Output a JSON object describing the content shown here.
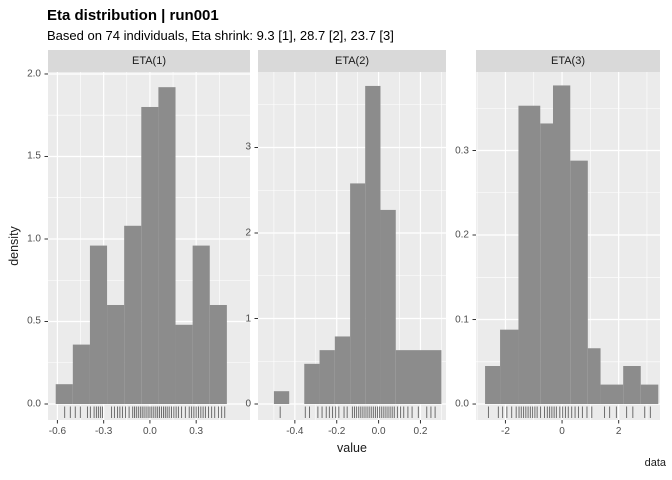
{
  "header": {
    "title": "Eta distribution | run001",
    "subtitle": "Based on 74 individuals, Eta shrink: 9.3 [1], 28.7 [2], 23.7 [3]"
  },
  "colors": {
    "bar": "#8c8c8c",
    "panel_bg": "#ebebeb",
    "strip_bg": "#d9d9d9",
    "grid": "#ffffff",
    "tick_text": "#4d4d4d",
    "axis_tick": "#333333",
    "rug": "#2b2b2b"
  },
  "chart_data": {
    "type": "histogram",
    "title": "Eta distribution | run001",
    "subtitle": "Based on 74 individuals, Eta shrink: 9.3 [1], 28.7 [2], 23.7 [3]",
    "xlabel": "value",
    "ylabel": "density",
    "caption": "data",
    "legend": "none",
    "grid": "major-and-minor",
    "facets": [
      {
        "label": "ETA(1)",
        "xlim": [
          -0.661,
          0.649
        ],
        "ylim": [
          -0.097,
          2.012
        ],
        "xticks": [
          -0.6,
          -0.3,
          0.0,
          0.3
        ],
        "xtick_labels": [
          "-0.6",
          "-0.3",
          "0.0",
          "0.3"
        ],
        "yticks": [
          0.0,
          0.5,
          1.0,
          1.5,
          2.0
        ],
        "ytick_labels": [
          "0.0",
          "0.5",
          "1.0",
          "1.5",
          "2.0"
        ],
        "bars": [
          [
            -0.611,
            -0.5,
            0.12
          ],
          [
            -0.5,
            -0.389,
            0.36
          ],
          [
            -0.389,
            -0.278,
            0.96
          ],
          [
            -0.278,
            -0.167,
            0.6
          ],
          [
            -0.167,
            -0.056,
            1.08
          ],
          [
            -0.056,
            0.055,
            1.8
          ],
          [
            0.055,
            0.166,
            1.92
          ],
          [
            0.166,
            0.277,
            0.48
          ],
          [
            0.277,
            0.388,
            0.96
          ],
          [
            0.388,
            0.499,
            0.6
          ]
        ],
        "rug": [
          -0.553,
          -0.516,
          -0.484,
          -0.451,
          -0.405,
          -0.386,
          -0.362,
          -0.347,
          -0.334,
          -0.321,
          -0.308,
          -0.249,
          -0.23,
          -0.21,
          -0.195,
          -0.178,
          -0.158,
          -0.135,
          -0.112,
          -0.1,
          -0.088,
          -0.075,
          -0.062,
          -0.05,
          -0.038,
          -0.025,
          -0.012,
          0.0,
          0.012,
          0.025,
          0.038,
          0.05,
          0.062,
          0.075,
          0.088,
          0.1,
          0.112,
          0.125,
          0.14,
          0.155,
          0.17,
          0.185,
          0.205,
          0.23,
          0.255,
          0.27,
          0.285,
          0.3,
          0.315,
          0.33,
          0.345,
          0.36,
          0.38,
          0.4,
          0.42,
          0.445,
          0.465,
          0.485
        ]
      },
      {
        "label": "ETA(2)",
        "xlim": [
          -0.576,
          0.322
        ],
        "ylim": [
          -0.187,
          3.883
        ],
        "xticks": [
          -0.4,
          -0.2,
          0.0,
          0.2
        ],
        "xtick_labels": [
          "-0.4",
          "-0.2",
          "0.0",
          "0.2"
        ],
        "yticks": [
          0,
          1,
          2,
          3
        ],
        "ytick_labels": [
          "0",
          "1",
          "2",
          "3"
        ],
        "bars": [
          [
            -0.5,
            -0.427,
            0.15
          ],
          [
            -0.355,
            -0.282,
            0.47
          ],
          [
            -0.282,
            -0.209,
            0.63
          ],
          [
            -0.209,
            -0.136,
            0.79
          ],
          [
            -0.136,
            -0.064,
            2.58
          ],
          [
            -0.064,
            0.009,
            3.72
          ],
          [
            0.009,
            0.082,
            2.27
          ],
          [
            0.082,
            0.3,
            0.63
          ]
        ],
        "rug": [
          -0.47,
          -0.35,
          -0.33,
          -0.29,
          -0.27,
          -0.25,
          -0.235,
          -0.22,
          -0.205,
          -0.19,
          -0.165,
          -0.15,
          -0.125,
          -0.115,
          -0.105,
          -0.095,
          -0.085,
          -0.075,
          -0.065,
          -0.055,
          -0.045,
          -0.035,
          -0.025,
          -0.015,
          -0.005,
          0.005,
          0.015,
          0.025,
          0.035,
          0.045,
          0.055,
          0.065,
          0.075,
          0.09,
          0.105,
          0.12,
          0.14,
          0.16,
          0.19,
          0.23,
          0.25,
          0.27
        ]
      },
      {
        "label": "ETA(3)",
        "xlim": [
          -3.04,
          3.46
        ],
        "ylim": [
          -0.0189,
          0.3929
        ],
        "xticks": [
          -2,
          0,
          2
        ],
        "xtick_labels": [
          "-2",
          "0",
          "2"
        ],
        "yticks": [
          0.0,
          0.1,
          0.2,
          0.3
        ],
        "ytick_labels": [
          "0.0",
          "0.1",
          "0.2",
          "0.3"
        ],
        "bars": [
          [
            -2.72,
            -2.19,
            0.045
          ],
          [
            -2.19,
            -1.54,
            0.088
          ],
          [
            -1.54,
            -0.77,
            0.353
          ],
          [
            -0.77,
            -0.32,
            0.332
          ],
          [
            -0.32,
            0.29,
            0.377
          ],
          [
            0.29,
            0.91,
            0.288
          ],
          [
            0.91,
            1.36,
            0.066
          ],
          [
            1.36,
            2.16,
            0.023
          ],
          [
            2.16,
            2.78,
            0.045
          ],
          [
            2.78,
            3.4,
            0.023
          ]
        ],
        "rug": [
          -2.6,
          -2.25,
          -2.1,
          -1.95,
          -1.78,
          -1.62,
          -1.52,
          -1.44,
          -1.36,
          -1.28,
          -1.2,
          -1.12,
          -1.04,
          -0.96,
          -0.88,
          -0.76,
          -0.62,
          -0.52,
          -0.44,
          -0.36,
          -0.28,
          -0.2,
          -0.08,
          0.02,
          0.12,
          0.22,
          0.34,
          0.46,
          0.58,
          0.72,
          0.88,
          1.05,
          1.5,
          1.68,
          1.92,
          2.28,
          2.5,
          2.92,
          3.12
        ]
      }
    ]
  }
}
